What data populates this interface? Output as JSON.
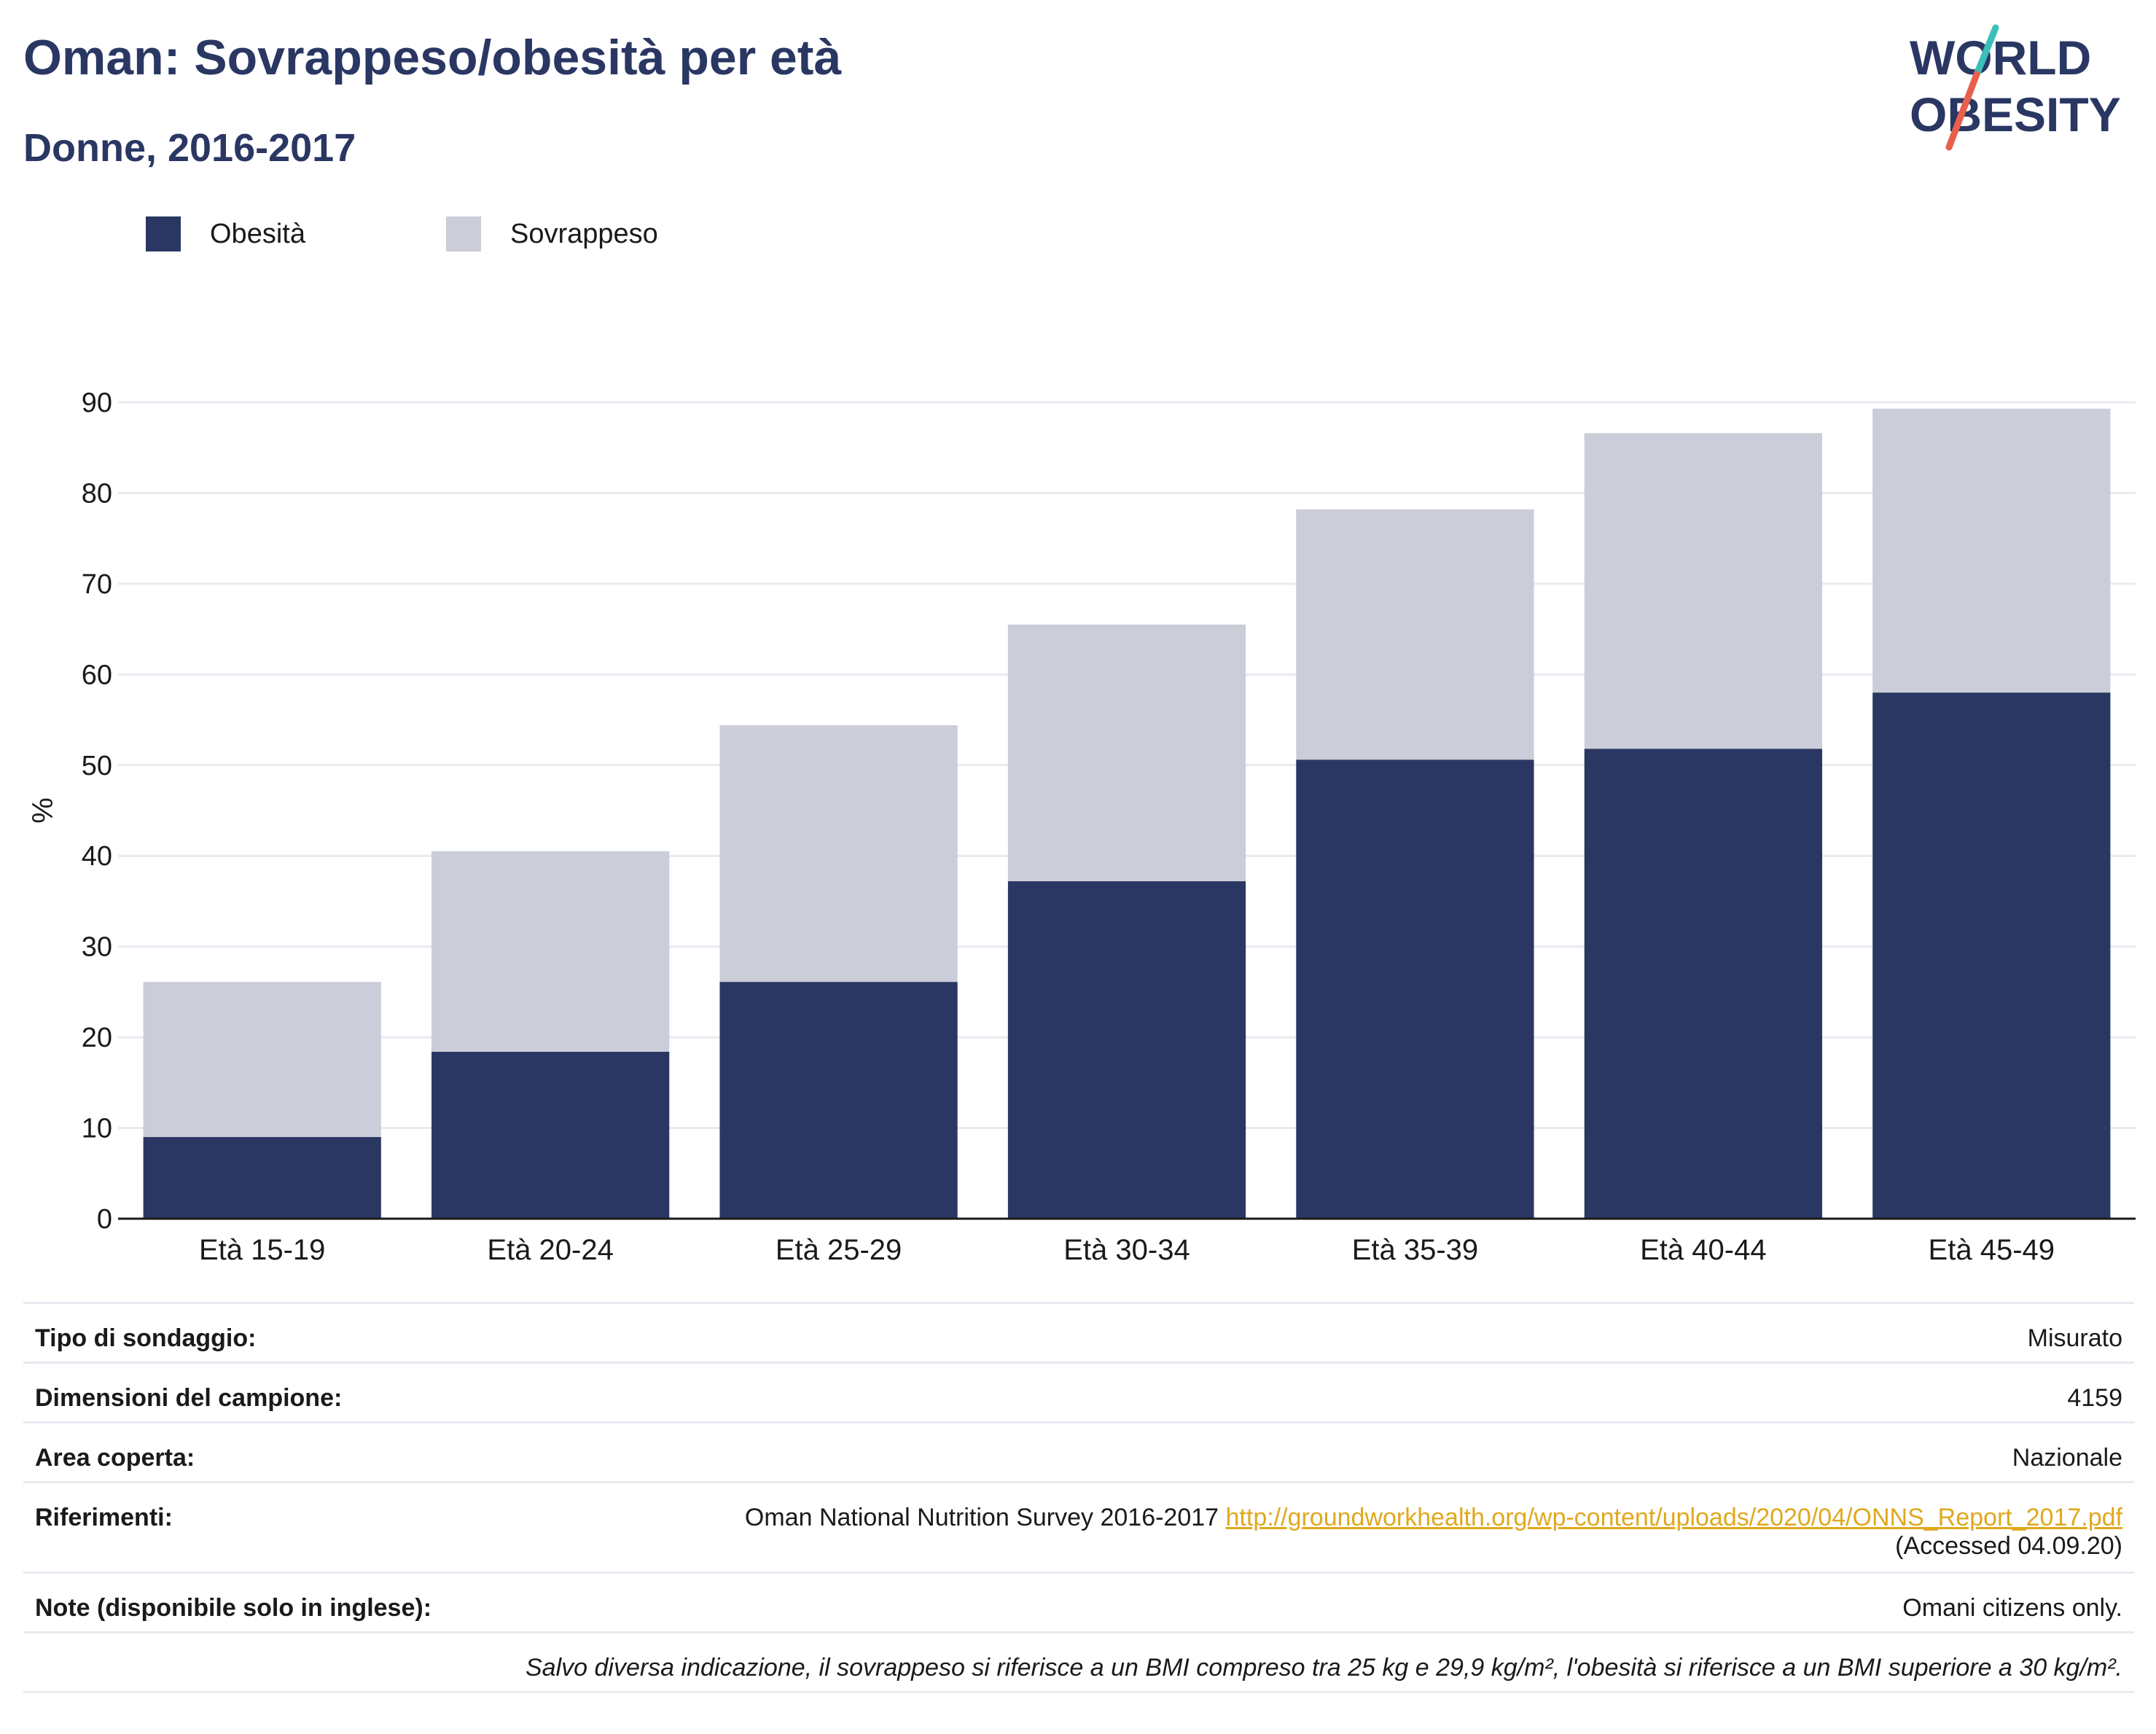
{
  "header": {
    "title": "Oman: Sovrappeso/obesità per età",
    "subtitle": "Donne, 2016-2017"
  },
  "logo": {
    "line1": "WORLD",
    "line2": "OBESITY",
    "colors": {
      "text": "#2a3763",
      "accent_teal": "#3bbfb8",
      "accent_red": "#e8604c"
    }
  },
  "legend": {
    "obesity_label": "Obesità",
    "overweight_label": "Sovrappeso"
  },
  "colors": {
    "obesity": "#2a3763",
    "overweight": "#cbcdd8",
    "grid": "#e8eaf0",
    "link": "#e0a81e"
  },
  "chart_data": {
    "type": "bar",
    "stacked": true,
    "categories": [
      "Età 15-19",
      "Età 20-24",
      "Età 25-29",
      "Età 30-34",
      "Età 35-39",
      "Età 40-44",
      "Età 45-49"
    ],
    "series": [
      {
        "name": "Obesità",
        "values": [
          9.0,
          18.4,
          26.1,
          37.2,
          50.6,
          51.8,
          58.0
        ]
      },
      {
        "name": "Sovrappeso",
        "values": [
          17.1,
          22.1,
          28.3,
          28.3,
          27.6,
          34.8,
          31.3
        ]
      }
    ],
    "ylabel": "%",
    "xlabel": "",
    "ylim": [
      0,
      90
    ],
    "yticks": [
      0,
      10,
      20,
      30,
      40,
      50,
      60,
      70,
      80,
      90
    ],
    "grid": true,
    "legend_position": "top-left"
  },
  "info": {
    "survey_type_label": "Tipo di sondaggio:",
    "survey_type_value": "Misurato",
    "sample_size_label": "Dimensioni del campione:",
    "sample_size_value": "4159",
    "area_label": "Area coperta:",
    "area_value": "Nazionale",
    "references_label": "Riferimenti:",
    "references_text": "Oman National Nutrition Survey 2016-2017",
    "references_link": "http://groundworkhealth.org/wp-content/uploads/2020/04/ONNS_Report_2017.pdf",
    "references_accessed": "(Accessed 04.09.20)",
    "notes_label": "Note (disponibile solo in inglese):",
    "notes_value": "Omani citizens only.",
    "footnote": "Salvo diversa indicazione, il sovrappeso si riferisce a un BMI compreso tra 25 kg e 29,9 kg/m², l'obesità si riferisce a un BMI superiore a 30 kg/m²."
  }
}
